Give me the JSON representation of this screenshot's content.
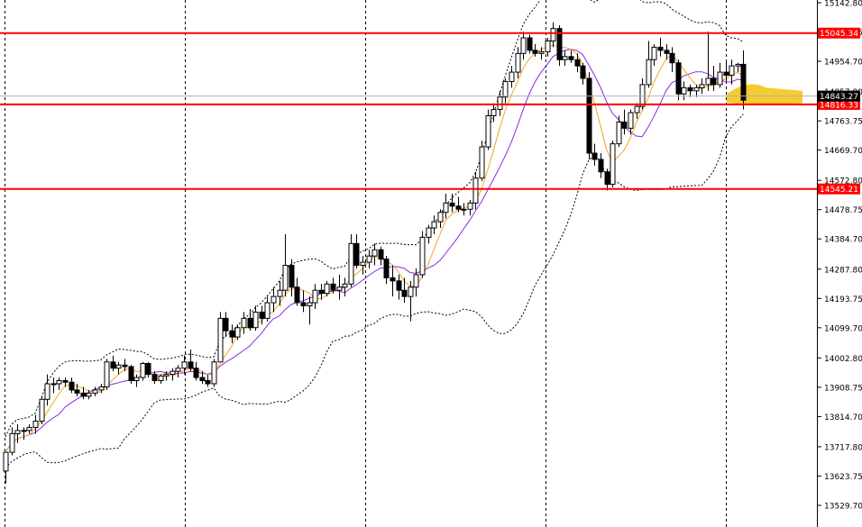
{
  "chart_data": {
    "type": "candlestick",
    "title": "",
    "xlabel": "",
    "ylabel": "",
    "ylim": [
      13490,
      15170
    ],
    "y_ticks": [
      13529.7,
      13623.75,
      13717.8,
      13814.7,
      13908.75,
      14002.8,
      14099.7,
      14193.75,
      14287.8,
      14384.7,
      14478.75,
      14572.8,
      14669.7,
      14763.75,
      14857.8,
      14954.7,
      15048.75,
      15142.8
    ],
    "y_tick_labels": [
      "13529.70",
      "13623.75",
      "13717.80",
      "13814.70",
      "13908.75",
      "14002.80",
      "14099.70",
      "14193.75",
      "14287.80",
      "14384.70",
      "14478.75",
      "14572.80",
      "14669.70",
      "14763.75",
      "14857.80",
      "14954.70",
      "15048.75",
      "15142.80"
    ],
    "levels": [
      {
        "value": 15045.34,
        "label": "15045.34",
        "color": "#ff0000"
      },
      {
        "value": 14816.33,
        "label": "14816.33",
        "color": "#ff0000"
      },
      {
        "value": 14545.21,
        "label": "14545.21",
        "color": "#ff0000"
      }
    ],
    "current_price": {
      "value": 14843.27,
      "label": "14843.27",
      "color": "#000000",
      "line_color": "#a9b3bd"
    },
    "grid": "vertical-dashed",
    "colors": {
      "up_body": "#ffffff",
      "down_body": "#000000",
      "wick": "#000000",
      "ma_fast": "#f5a623",
      "ma_slow": "#8a2be2",
      "bands": "#000000",
      "highlight": "#f5c518"
    },
    "ohlc": [
      [
        13640,
        13700,
        13600,
        13700
      ],
      [
        13700,
        13780,
        13690,
        13760
      ],
      [
        13760,
        13790,
        13730,
        13770
      ],
      [
        13770,
        13780,
        13740,
        13770
      ],
      [
        13770,
        13790,
        13760,
        13780
      ],
      [
        13780,
        13820,
        13760,
        13800
      ],
      [
        13800,
        13880,
        13790,
        13870
      ],
      [
        13870,
        13950,
        13850,
        13920
      ],
      [
        13920,
        13940,
        13890,
        13920
      ],
      [
        13920,
        13940,
        13900,
        13930
      ],
      [
        13930,
        13940,
        13910,
        13925
      ],
      [
        13925,
        13940,
        13890,
        13900
      ],
      [
        13900,
        13920,
        13880,
        13890
      ],
      [
        13890,
        13910,
        13870,
        13880
      ],
      [
        13880,
        13900,
        13870,
        13890
      ],
      [
        13890,
        13910,
        13880,
        13900
      ],
      [
        13900,
        13920,
        13890,
        13910
      ],
      [
        13910,
        14000,
        13900,
        13990
      ],
      [
        13990,
        14010,
        13960,
        13970
      ],
      [
        13970,
        13990,
        13950,
        13980
      ],
      [
        13980,
        14000,
        13960,
        13975
      ],
      [
        13975,
        13980,
        13920,
        13930
      ],
      [
        13930,
        13950,
        13910,
        13940
      ],
      [
        13940,
        13990,
        13930,
        13985
      ],
      [
        13985,
        13990,
        13940,
        13950
      ],
      [
        13950,
        13960,
        13920,
        13930
      ],
      [
        13930,
        13950,
        13920,
        13945
      ],
      [
        13945,
        13960,
        13930,
        13950
      ],
      [
        13950,
        13970,
        13930,
        13960
      ],
      [
        13960,
        13980,
        13940,
        13970
      ],
      [
        13970,
        14010,
        13950,
        13990
      ],
      [
        13990,
        14030,
        13960,
        13970
      ],
      [
        13970,
        13990,
        13930,
        13940
      ],
      [
        13940,
        13960,
        13920,
        13930
      ],
      [
        13930,
        13950,
        13910,
        13920
      ],
      [
        13920,
        14000,
        13910,
        13990
      ],
      [
        13990,
        14150,
        13990,
        14130
      ],
      [
        14130,
        14150,
        14070,
        14090
      ],
      [
        14090,
        14110,
        14050,
        14070
      ],
      [
        14070,
        14110,
        14060,
        14100
      ],
      [
        14100,
        14150,
        14080,
        14130
      ],
      [
        14130,
        14160,
        14090,
        14100
      ],
      [
        14100,
        14170,
        14090,
        14150
      ],
      [
        14150,
        14170,
        14110,
        14130
      ],
      [
        14130,
        14200,
        14120,
        14180
      ],
      [
        14180,
        14230,
        14150,
        14200
      ],
      [
        14200,
        14250,
        14170,
        14220
      ],
      [
        14220,
        14400,
        14200,
        14300
      ],
      [
        14300,
        14320,
        14200,
        14230
      ],
      [
        14230,
        14260,
        14170,
        14180
      ],
      [
        14180,
        14220,
        14150,
        14170
      ],
      [
        14170,
        14200,
        14110,
        14180
      ],
      [
        14180,
        14240,
        14160,
        14220
      ],
      [
        14220,
        14240,
        14190,
        14210
      ],
      [
        14210,
        14250,
        14200,
        14240
      ],
      [
        14240,
        14260,
        14210,
        14220
      ],
      [
        14220,
        14270,
        14190,
        14230
      ],
      [
        14230,
        14260,
        14200,
        14240
      ],
      [
        14240,
        14400,
        14230,
        14370
      ],
      [
        14370,
        14400,
        14290,
        14300
      ],
      [
        14300,
        14330,
        14270,
        14310
      ],
      [
        14310,
        14350,
        14290,
        14330
      ],
      [
        14330,
        14370,
        14300,
        14350
      ],
      [
        14350,
        14360,
        14300,
        14320
      ],
      [
        14320,
        14330,
        14240,
        14260
      ],
      [
        14260,
        14300,
        14200,
        14250
      ],
      [
        14250,
        14270,
        14190,
        14220
      ],
      [
        14220,
        14260,
        14180,
        14200
      ],
      [
        14200,
        14250,
        14120,
        14230
      ],
      [
        14230,
        14290,
        14200,
        14270
      ],
      [
        14270,
        14410,
        14260,
        14390
      ],
      [
        14390,
        14430,
        14370,
        14420
      ],
      [
        14420,
        14460,
        14400,
        14440
      ],
      [
        14440,
        14480,
        14420,
        14470
      ],
      [
        14470,
        14530,
        14450,
        14500
      ],
      [
        14500,
        14530,
        14470,
        14490
      ],
      [
        14490,
        14520,
        14470,
        14480
      ],
      [
        14480,
        14500,
        14460,
        14480
      ],
      [
        14480,
        14510,
        14460,
        14500
      ],
      [
        14500,
        14600,
        14480,
        14580
      ],
      [
        14580,
        14700,
        14570,
        14680
      ],
      [
        14680,
        14800,
        14670,
        14780
      ],
      [
        14780,
        14820,
        14760,
        14800
      ],
      [
        14800,
        14860,
        14780,
        14840
      ],
      [
        14840,
        14900,
        14820,
        14890
      ],
      [
        14890,
        14940,
        14870,
        14920
      ],
      [
        14920,
        15000,
        14900,
        14980
      ],
      [
        14980,
        15050,
        14960,
        15030
      ],
      [
        15030,
        15040,
        14980,
        14990
      ],
      [
        14990,
        15010,
        14970,
        14980
      ],
      [
        14980,
        15000,
        14960,
        14985
      ],
      [
        14985,
        15030,
        14970,
        15020
      ],
      [
        15020,
        15080,
        15000,
        15060
      ],
      [
        15060,
        15070,
        14940,
        14960
      ],
      [
        14960,
        14990,
        14940,
        14970
      ],
      [
        14970,
        14990,
        14950,
        14960
      ],
      [
        14960,
        14980,
        14920,
        14940
      ],
      [
        14940,
        14950,
        14880,
        14900
      ],
      [
        14900,
        14920,
        14640,
        14660
      ],
      [
        14660,
        14690,
        14620,
        14640
      ],
      [
        14640,
        14660,
        14580,
        14600
      ],
      [
        14600,
        14610,
        14540,
        14560
      ],
      [
        14560,
        14700,
        14550,
        14690
      ],
      [
        14690,
        14780,
        14680,
        14760
      ],
      [
        14760,
        14800,
        14720,
        14740
      ],
      [
        14740,
        14800,
        14720,
        14790
      ],
      [
        14790,
        14820,
        14770,
        14810
      ],
      [
        14810,
        14900,
        14800,
        14880
      ],
      [
        14880,
        15020,
        14870,
        14960
      ],
      [
        14960,
        15010,
        14940,
        15000
      ],
      [
        15000,
        15030,
        14970,
        14990
      ],
      [
        14990,
        15010,
        14960,
        14980
      ],
      [
        14980,
        15000,
        14920,
        14950
      ],
      [
        14950,
        14960,
        14830,
        14850
      ],
      [
        14850,
        14890,
        14830,
        14870
      ],
      [
        14870,
        14880,
        14840,
        14860
      ],
      [
        14860,
        14880,
        14840,
        14870
      ],
      [
        14870,
        14900,
        14850,
        14880
      ],
      [
        14880,
        15050,
        14860,
        14900
      ],
      [
        14900,
        14940,
        14860,
        14880
      ],
      [
        14880,
        14950,
        14870,
        14920
      ],
      [
        14920,
        14960,
        14890,
        14910
      ],
      [
        14910,
        14960,
        14880,
        14940
      ],
      [
        14940,
        14950,
        14920,
        14945
      ],
      [
        14945,
        14990,
        14800,
        14830
      ]
    ]
  }
}
